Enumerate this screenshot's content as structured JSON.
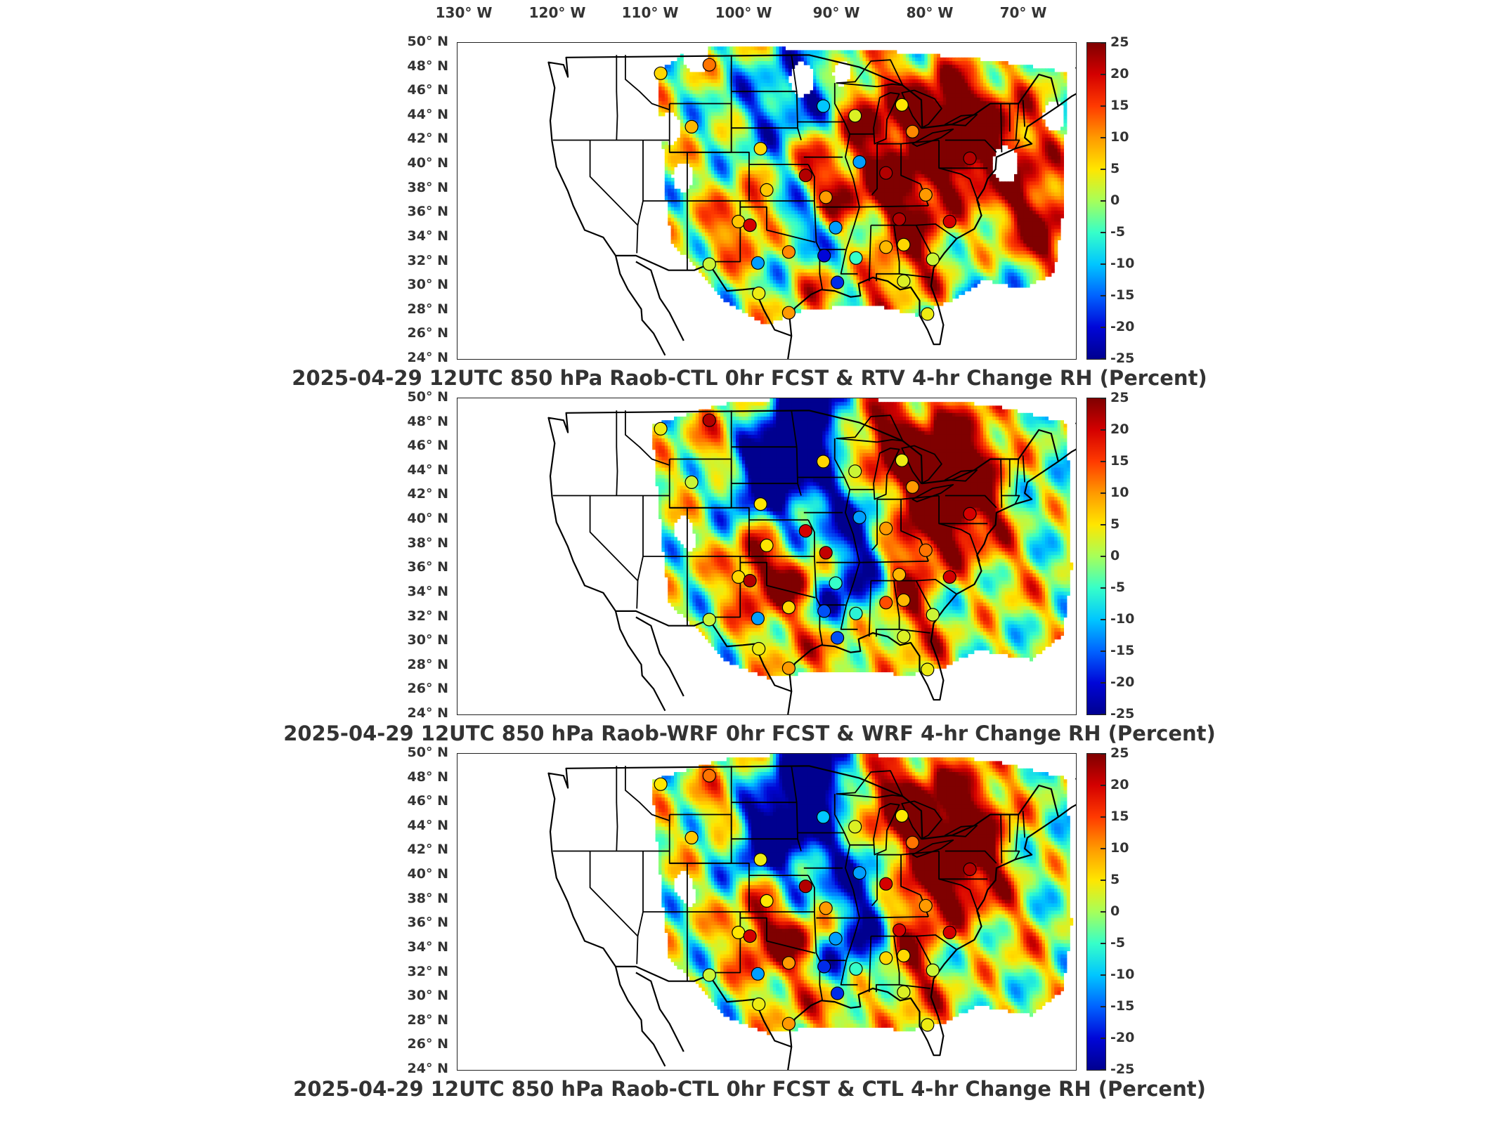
{
  "lon_ticks": [
    "130° W",
    "120° W",
    "110° W",
    "100° W",
    "90° W",
    "80° W",
    "70° W"
  ],
  "lat_ticks": [
    "50° N",
    "48° N",
    "46° N",
    "44° N",
    "42° N",
    "40° N",
    "38° N",
    "36° N",
    "34° N",
    "32° N",
    "30° N",
    "28° N",
    "26° N",
    "24° N"
  ],
  "colorbar": {
    "ticks": [
      "25",
      "20",
      "15",
      "10",
      "5",
      "0",
      "-5",
      "-10",
      "-15",
      "-20",
      "-25"
    ],
    "colormap": [
      "#7f0000",
      "#d40000",
      "#ff3a00",
      "#ff9a00",
      "#ffe600",
      "#a6ff5a",
      "#36ffc9",
      "#00c6ff",
      "#0062ff",
      "#0006d8",
      "#00008f"
    ]
  },
  "panels": [
    {
      "title": "2025-04-29 12UTC 850 hPa Raob-CTL 0hr FCST & RTV 4-hr Change RH (Percent)"
    },
    {
      "title": "2025-04-29 12UTC 850 hPa Raob-WRF 0hr FCST & WRF 4-hr Change RH (Percent)"
    },
    {
      "title": "2025-04-29 12UTC 850 hPa Raob-CTL 0hr FCST & CTL 4-hr Change RH (Percent)"
    }
  ],
  "chart_data": {
    "type": "heatmap",
    "description_units": "RH change (Percent)",
    "x_range_lon": [
      -135,
      -65
    ],
    "y_range_lat": [
      24,
      50
    ],
    "color_range": [
      -25,
      25
    ],
    "raob_stations": [
      {
        "lon": -112.0,
        "lat": 47.5,
        "values": [
          6,
          4,
          5
        ]
      },
      {
        "lon": -106.5,
        "lat": 48.2,
        "values": [
          12,
          22,
          12
        ]
      },
      {
        "lon": -108.5,
        "lat": 43.1,
        "values": [
          8,
          2,
          7
        ]
      },
      {
        "lon": -100.7,
        "lat": 41.3,
        "values": [
          6,
          5,
          4
        ]
      },
      {
        "lon": -93.6,
        "lat": 44.8,
        "values": [
          -10,
          6,
          -10
        ]
      },
      {
        "lon": -84.7,
        "lat": 44.9,
        "values": [
          5,
          4,
          5
        ]
      },
      {
        "lon": -83.5,
        "lat": 42.7,
        "values": [
          11,
          10,
          12
        ]
      },
      {
        "lon": -77.0,
        "lat": 40.5,
        "values": [
          22,
          20,
          22
        ]
      },
      {
        "lon": -95.6,
        "lat": 39.1,
        "values": [
          22,
          20,
          22
        ]
      },
      {
        "lon": -100.0,
        "lat": 37.9,
        "values": [
          7,
          5,
          5
        ]
      },
      {
        "lon": -93.3,
        "lat": 37.3,
        "values": [
          10,
          21,
          10
        ]
      },
      {
        "lon": -86.5,
        "lat": 39.3,
        "values": [
          22,
          10,
          20
        ]
      },
      {
        "lon": -82.0,
        "lat": 37.5,
        "values": [
          10,
          12,
          10
        ]
      },
      {
        "lon": -85.0,
        "lat": 35.5,
        "values": [
          22,
          8,
          20
        ]
      },
      {
        "lon": -79.3,
        "lat": 35.3,
        "values": [
          20,
          20,
          20
        ]
      },
      {
        "lon": -92.2,
        "lat": 34.8,
        "values": [
          -12,
          -5,
          -12
        ]
      },
      {
        "lon": -103.2,
        "lat": 35.3,
        "values": [
          7,
          6,
          5
        ]
      },
      {
        "lon": -101.9,
        "lat": 35.0,
        "values": [
          20,
          22,
          20
        ]
      },
      {
        "lon": -97.5,
        "lat": 32.8,
        "values": [
          11,
          6,
          10
        ]
      },
      {
        "lon": -101.0,
        "lat": 31.9,
        "values": [
          -12,
          -12,
          -12
        ]
      },
      {
        "lon": -93.5,
        "lat": 32.5,
        "values": [
          -20,
          -16,
          -18
        ]
      },
      {
        "lon": -89.9,
        "lat": 32.3,
        "values": [
          -5,
          -6,
          -5
        ]
      },
      {
        "lon": -86.5,
        "lat": 33.2,
        "values": [
          8,
          14,
          6
        ]
      },
      {
        "lon": -84.5,
        "lat": 33.4,
        "values": [
          6,
          8,
          6
        ]
      },
      {
        "lon": -81.2,
        "lat": 32.2,
        "values": [
          2,
          2,
          2
        ]
      },
      {
        "lon": -92.0,
        "lat": 30.3,
        "values": [
          -18,
          -16,
          -18
        ]
      },
      {
        "lon": -84.5,
        "lat": 30.4,
        "values": [
          3,
          3,
          3
        ]
      },
      {
        "lon": -106.5,
        "lat": 31.8,
        "values": [
          2,
          2,
          2
        ]
      },
      {
        "lon": -100.9,
        "lat": 29.4,
        "values": [
          4,
          4,
          4
        ]
      },
      {
        "lon": -97.5,
        "lat": 27.8,
        "values": [
          10,
          10,
          10
        ]
      },
      {
        "lon": -81.8,
        "lat": 27.7,
        "values": [
          4,
          4,
          4
        ]
      },
      {
        "lon": -90.0,
        "lat": 44.0,
        "values": [
          3,
          2,
          3
        ]
      },
      {
        "lon": -89.5,
        "lat": 40.2,
        "values": [
          -12,
          -12,
          -12
        ]
      }
    ]
  }
}
